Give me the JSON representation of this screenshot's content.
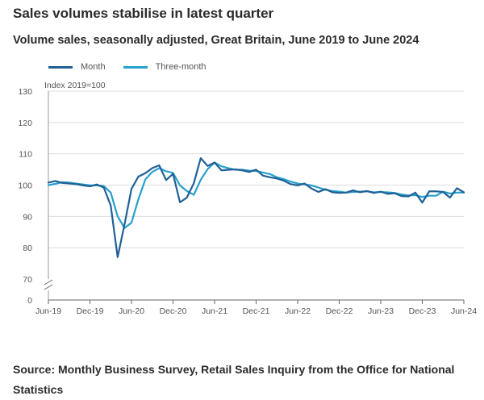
{
  "header": {
    "title": "Sales volumes stabilise in latest quarter",
    "subtitle": "Volume sales, seasonally adjusted, Great Britain, June 2019 to June 2024"
  },
  "source": "Source: Monthly Business Survey, Retail Sales Inquiry from the Office for National Statistics",
  "colors": {
    "month": "#206095",
    "three_month": "#27a0cc",
    "grid": "#dddddd",
    "axis": "#999999"
  },
  "chart_data": {
    "type": "line",
    "title": "Volume sales, seasonally adjusted, Great Britain, June 2019 to June 2024",
    "ylabel": "Index 2019=100",
    "ylim": [
      70,
      130
    ],
    "yticks": [
      70,
      80,
      90,
      100,
      110,
      120,
      130
    ],
    "y_break_label": "0",
    "grid": true,
    "legend_position": "top-left",
    "x": [
      "Jun-19",
      "Jul-19",
      "Aug-19",
      "Sep-19",
      "Oct-19",
      "Nov-19",
      "Dec-19",
      "Jan-20",
      "Feb-20",
      "Mar-20",
      "Apr-20",
      "May-20",
      "Jun-20",
      "Jul-20",
      "Aug-20",
      "Sep-20",
      "Oct-20",
      "Nov-20",
      "Dec-20",
      "Jan-21",
      "Feb-21",
      "Mar-21",
      "Apr-21",
      "May-21",
      "Jun-21",
      "Jul-21",
      "Aug-21",
      "Sep-21",
      "Oct-21",
      "Nov-21",
      "Dec-21",
      "Jan-22",
      "Feb-22",
      "Mar-22",
      "Apr-22",
      "May-22",
      "Jun-22",
      "Jul-22",
      "Aug-22",
      "Sep-22",
      "Oct-22",
      "Nov-22",
      "Dec-22",
      "Jan-23",
      "Feb-23",
      "Mar-23",
      "Apr-23",
      "May-23",
      "Jun-23",
      "Jul-23",
      "Aug-23",
      "Sep-23",
      "Oct-23",
      "Nov-23",
      "Dec-23",
      "Jan-24",
      "Feb-24",
      "Mar-24",
      "Apr-24",
      "May-24",
      "Jun-24"
    ],
    "xtick_labels": [
      "Jun-19",
      "Dec-19",
      "Jun-20",
      "Dec-20",
      "Jun-21",
      "Dec-21",
      "Jun-22",
      "Dec-22",
      "Jun-23",
      "Dec-23",
      "Jun-24"
    ],
    "series": [
      {
        "name": "Month",
        "values": [
          100.8,
          101.3,
          100.7,
          100.5,
          100.3,
          99.9,
          99.6,
          100.2,
          99.2,
          93.5,
          77.0,
          87.5,
          98.8,
          102.7,
          103.8,
          105.4,
          106.3,
          101.6,
          103.6,
          94.5,
          96.0,
          100.6,
          108.6,
          106.1,
          107.2,
          104.7,
          104.9,
          105.0,
          104.7,
          104.2,
          104.9,
          103.0,
          102.5,
          102.1,
          101.4,
          100.3,
          99.9,
          100.5,
          98.9,
          97.8,
          98.7,
          97.7,
          97.5,
          97.6,
          98.3,
          97.7,
          98.1,
          97.5,
          97.9,
          97.2,
          97.4,
          96.5,
          96.4,
          97.6,
          94.4,
          98.0,
          98.0,
          97.8,
          96.0,
          99.0,
          97.7
        ]
      },
      {
        "name": "Three-month",
        "values": [
          100.0,
          100.4,
          100.9,
          100.8,
          100.5,
          100.2,
          99.9,
          99.9,
          99.7,
          97.6,
          90.0,
          86.3,
          88.0,
          95.5,
          101.8,
          104.2,
          105.4,
          104.4,
          103.9,
          99.9,
          98.1,
          96.9,
          101.7,
          105.1,
          107.2,
          106.0,
          105.4,
          104.9,
          104.9,
          104.6,
          104.5,
          104.0,
          103.5,
          102.5,
          101.9,
          101.1,
          100.5,
          100.2,
          99.9,
          99.2,
          98.5,
          98.1,
          97.9,
          97.6,
          97.8,
          97.9,
          98.0,
          97.7,
          97.8,
          97.7,
          97.5,
          97.0,
          96.7,
          96.8,
          96.2,
          96.6,
          96.6,
          97.9,
          97.3,
          97.6,
          97.6
        ]
      }
    ]
  }
}
